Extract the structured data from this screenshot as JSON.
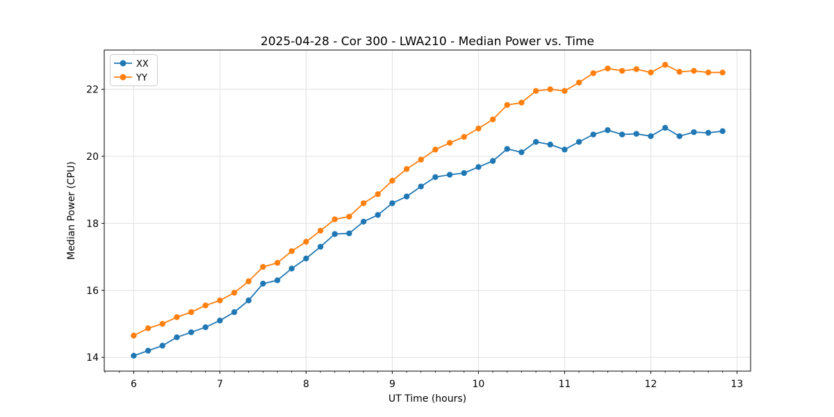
{
  "chart_data": {
    "type": "line",
    "title": "2025-04-28 - Cor 300 - LWA210 - Median Power vs. Time",
    "xlabel": "UT Time (hours)",
    "ylabel": "Median Power (CPU)",
    "xlim": [
      5.658,
      13.158
    ],
    "ylim": [
      13.59,
      23.17
    ],
    "xticks": [
      6,
      7,
      8,
      9,
      10,
      11,
      12,
      13
    ],
    "yticks": [
      14,
      16,
      18,
      20,
      22
    ],
    "x_minor_step": 0.166667,
    "grid": true,
    "grid_color": "#e0e0e0",
    "spine_color": "#000000",
    "legend_position": "upper-left",
    "legend_border_color": "#cccccc",
    "x": [
      6.0,
      6.167,
      6.333,
      6.5,
      6.667,
      6.833,
      7.0,
      7.167,
      7.333,
      7.5,
      7.667,
      7.833,
      8.0,
      8.167,
      8.333,
      8.5,
      8.667,
      8.833,
      9.0,
      9.167,
      9.333,
      9.5,
      9.667,
      9.833,
      10.0,
      10.167,
      10.333,
      10.5,
      10.667,
      10.833,
      11.0,
      11.167,
      11.333,
      11.5,
      11.667,
      11.833,
      12.0,
      12.167,
      12.333,
      12.5,
      12.667,
      12.833
    ],
    "series": [
      {
        "name": "XX",
        "color": "#1f77b4",
        "marker": "circle",
        "values": [
          14.05,
          14.2,
          14.35,
          14.6,
          14.75,
          14.9,
          15.1,
          15.35,
          15.7,
          16.2,
          16.3,
          16.65,
          16.95,
          17.3,
          17.68,
          17.7,
          18.05,
          18.25,
          18.6,
          18.8,
          19.1,
          19.38,
          19.45,
          19.5,
          19.68,
          19.86,
          20.22,
          20.12,
          20.43,
          20.35,
          20.2,
          20.43,
          20.65,
          20.78,
          20.65,
          20.67,
          20.6,
          20.85,
          20.6,
          20.72,
          20.7,
          20.75
        ]
      },
      {
        "name": "YY",
        "color": "#ff7f0e",
        "marker": "circle",
        "values": [
          14.65,
          14.87,
          15.0,
          15.2,
          15.35,
          15.55,
          15.7,
          15.93,
          16.27,
          16.7,
          16.82,
          17.17,
          17.45,
          17.78,
          18.12,
          18.2,
          18.6,
          18.87,
          19.27,
          19.62,
          19.9,
          20.2,
          20.4,
          20.58,
          20.83,
          21.1,
          21.53,
          21.6,
          21.95,
          22.0,
          21.95,
          22.2,
          22.48,
          22.62,
          22.55,
          22.6,
          22.5,
          22.73,
          22.52,
          22.55,
          22.5,
          22.5
        ]
      }
    ]
  }
}
